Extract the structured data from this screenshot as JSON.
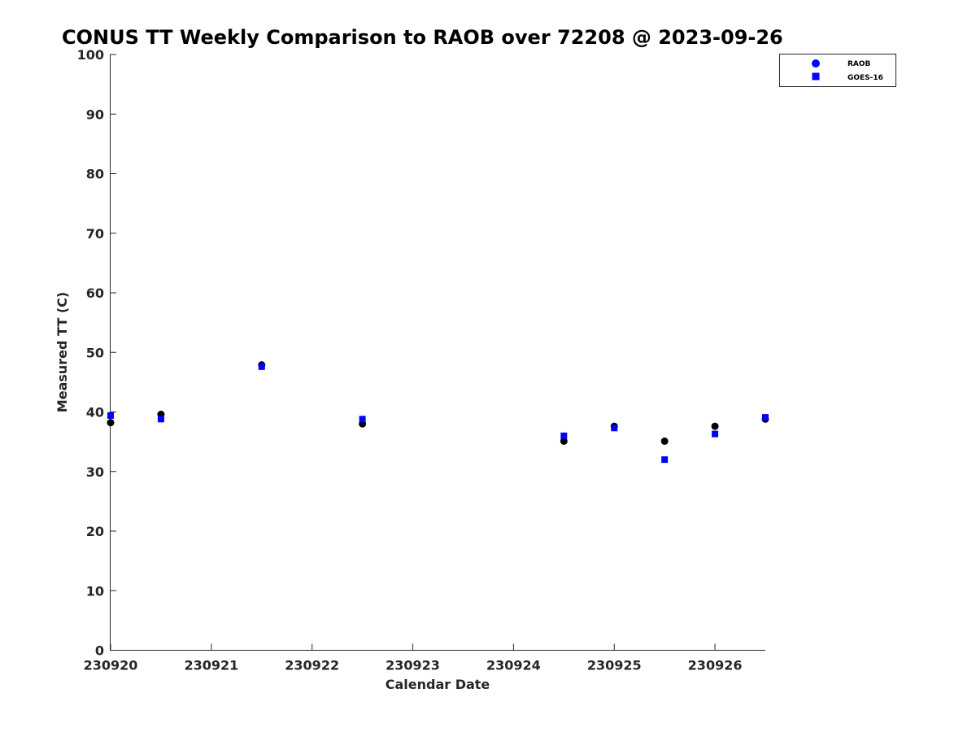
{
  "chart_data": {
    "type": "scatter",
    "title": "CONUS TT Weekly Comparison to RAOB over 72208 @ 2023-09-26",
    "xlabel": "Calendar Date",
    "ylabel": "Measured TT (C)",
    "xlim": [
      0,
      6.5
    ],
    "ylim": [
      0,
      100
    ],
    "x_ticks": [
      0,
      1,
      2,
      3,
      4,
      5,
      6
    ],
    "x_tick_labels": [
      "230920",
      "230921",
      "230922",
      "230923",
      "230924",
      "230925",
      "230926"
    ],
    "y_ticks": [
      0,
      10,
      20,
      30,
      40,
      50,
      60,
      70,
      80,
      90,
      100
    ],
    "y_tick_labels": [
      "0",
      "10",
      "20",
      "30",
      "40",
      "50",
      "60",
      "70",
      "80",
      "90",
      "100"
    ],
    "grid": false,
    "legend_position": "top-right",
    "series": [
      {
        "name": "RAOB",
        "marker": "circle",
        "color": "#000000",
        "legend_color": "#0000ff",
        "x": [
          0,
          0.5,
          1.5,
          2.5,
          4.5,
          5,
          5.5,
          6,
          6.5
        ],
        "values": [
          38.2,
          39.6,
          47.9,
          38.0,
          35.1,
          37.6,
          35.1,
          37.6,
          38.8
        ]
      },
      {
        "name": "GOES-16",
        "marker": "square",
        "color": "#0000ff",
        "x": [
          0,
          0.5,
          1.5,
          2.5,
          4.5,
          5,
          5.5,
          6,
          6.5
        ],
        "values": [
          39.4,
          38.8,
          47.6,
          38.8,
          36.0,
          37.3,
          32.0,
          36.3,
          39.1
        ]
      }
    ]
  }
}
